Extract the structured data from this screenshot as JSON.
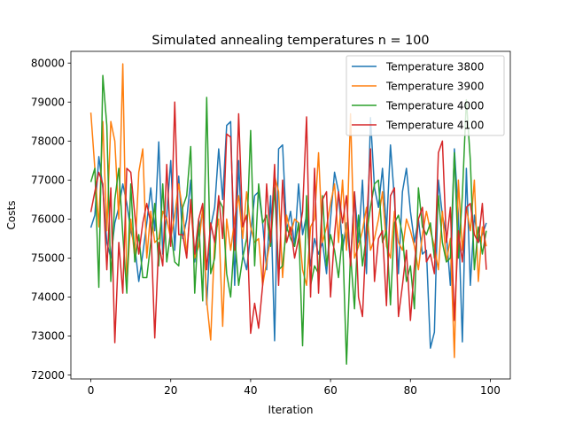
{
  "chart_data": {
    "type": "line",
    "title": "Simulated annealing temperatures n = 100",
    "xlabel": "Iteration",
    "ylabel": "Costs",
    "xlim": [
      -5,
      105
    ],
    "ylim": [
      71900,
      80300
    ],
    "xticks": [
      0,
      20,
      40,
      60,
      80,
      100
    ],
    "yticks": [
      72000,
      73000,
      74000,
      75000,
      76000,
      77000,
      78000,
      79000,
      80000
    ],
    "grid": false,
    "legend_position": "top-right",
    "series": [
      {
        "name": "Temperature 3800",
        "color": "#1f77b4",
        "values": [
          75780,
          76100,
          77600,
          76800,
          75400,
          75000,
          75900,
          76300,
          76900,
          76400,
          75700,
          75300,
          74400,
          75100,
          75900,
          76800,
          75700,
          77980,
          75100,
          76100,
          77500,
          75200,
          77100,
          75500,
          76000,
          77000,
          74900,
          75700,
          76200,
          73800,
          75800,
          76300,
          77800,
          76500,
          78400,
          78500,
          74300,
          77500,
          75100,
          74700,
          75600,
          76600,
          76700,
          75900,
          74700,
          76600,
          72880,
          77800,
          77900,
          75700,
          76200,
          75300,
          76900,
          75600,
          76100,
          74800,
          75500,
          75100,
          75400,
          74600,
          76000,
          77200,
          76700,
          75200,
          75900,
          74900,
          76700,
          75400,
          77000,
          74600,
          78600,
          76800,
          76300,
          77300,
          75700,
          77900,
          76500,
          74600,
          76700,
          77300,
          76200,
          75400,
          76000,
          75100,
          75200,
          72690,
          73100,
          77000,
          76100,
          75600,
          74300,
          77800,
          76100,
          72850,
          77300,
          74300,
          76100,
          75400,
          75600,
          75900
        ]
      },
      {
        "name": "Temperature 3900",
        "color": "#ff7f0e",
        "values": [
          78730,
          77300,
          75800,
          78500,
          75700,
          78500,
          78000,
          76000,
          79980,
          74300,
          76000,
          75000,
          77200,
          77800,
          75000,
          76200,
          75400,
          75500,
          76200,
          76000,
          75500,
          76100,
          76900,
          76200,
          75100,
          76400,
          75000,
          75300,
          76300,
          73900,
          72900,
          75500,
          76000,
          73250,
          76000,
          75200,
          76000,
          76600,
          75500,
          76700,
          75800,
          75400,
          75500,
          74300,
          74900,
          75500,
          77100,
          76700,
          74500,
          76100,
          75600,
          76000,
          75900,
          74700,
          74300,
          75800,
          76000,
          77700,
          75400,
          75800,
          76400,
          76900,
          75400,
          77000,
          75200,
          78700,
          75000,
          75300,
          75700,
          76300,
          75200,
          75500,
          76000,
          76700,
          75300,
          75000,
          76200,
          75400,
          75200,
          76000,
          75700,
          75300,
          74700,
          75600,
          76200,
          75700,
          75300,
          74700,
          76200,
          74900,
          75500,
          72450,
          77000,
          75200,
          76300,
          75700,
          77000,
          74400,
          75800,
          75300
        ]
      },
      {
        "name": "Temperature 4000",
        "color": "#2ca02c",
        "values": [
          76950,
          77300,
          74250,
          79680,
          78400,
          74400,
          76500,
          77300,
          75600,
          74100,
          76900,
          74900,
          75600,
          74500,
          74500,
          75400,
          76400,
          74800,
          76900,
          74900,
          75700,
          74900,
          74800,
          76300,
          76600,
          77860,
          74100,
          76000,
          73900,
          79120,
          74600,
          75000,
          76500,
          76300,
          74600,
          74000,
          75600,
          74300,
          75000,
          75500,
          78270,
          74800,
          76900,
          75900,
          76100,
          75300,
          76800,
          74700,
          74800,
          75800,
          75500,
          75300,
          75900,
          72750,
          76600,
          74300,
          74800,
          74600,
          76600,
          74800,
          75600,
          75200,
          74500,
          75600,
          72280,
          75100,
          73700,
          76100,
          74800,
          75600,
          76300,
          76900,
          77000,
          75400,
          75700,
          73800,
          75900,
          76100,
          75600,
          74400,
          74800,
          73700,
          76800,
          75800,
          75600,
          75900,
          75000,
          76600,
          75400,
          74900,
          75000,
          77700,
          75000,
          76600,
          79060,
          77500,
          74700,
          75800,
          75100,
          75700
        ]
      },
      {
        "name": "Temperature 4100",
        "color": "#d62728",
        "values": [
          76180,
          76700,
          77200,
          76900,
          74700,
          76800,
          72830,
          75400,
          74100,
          77300,
          77200,
          76100,
          75100,
          75900,
          76400,
          75900,
          72950,
          75400,
          74800,
          77400,
          75300,
          79000,
          75600,
          75600,
          75000,
          76500,
          75100,
          76000,
          76400,
          74700,
          75900,
          75400,
          76600,
          75500,
          78180,
          78100,
          75200,
          78700,
          75800,
          76100,
          73070,
          73840,
          73200,
          74300,
          76900,
          75400,
          77400,
          74300,
          77000,
          75400,
          75800,
          75000,
          75500,
          76200,
          78620,
          74000,
          77300,
          74100,
          76500,
          76700,
          74000,
          75600,
          76700,
          75900,
          76600,
          74800,
          76700,
          74000,
          73500,
          75800,
          77800,
          74400,
          75500,
          75700,
          73780,
          76600,
          76800,
          73500,
          74300,
          75200,
          73400,
          74800,
          76000,
          76300,
          74900,
          75100,
          74600,
          77700,
          78000,
          75400,
          76300,
          73400,
          75700,
          74900,
          76300,
          76400,
          75600,
          75400,
          76400,
          74700
        ]
      }
    ]
  }
}
